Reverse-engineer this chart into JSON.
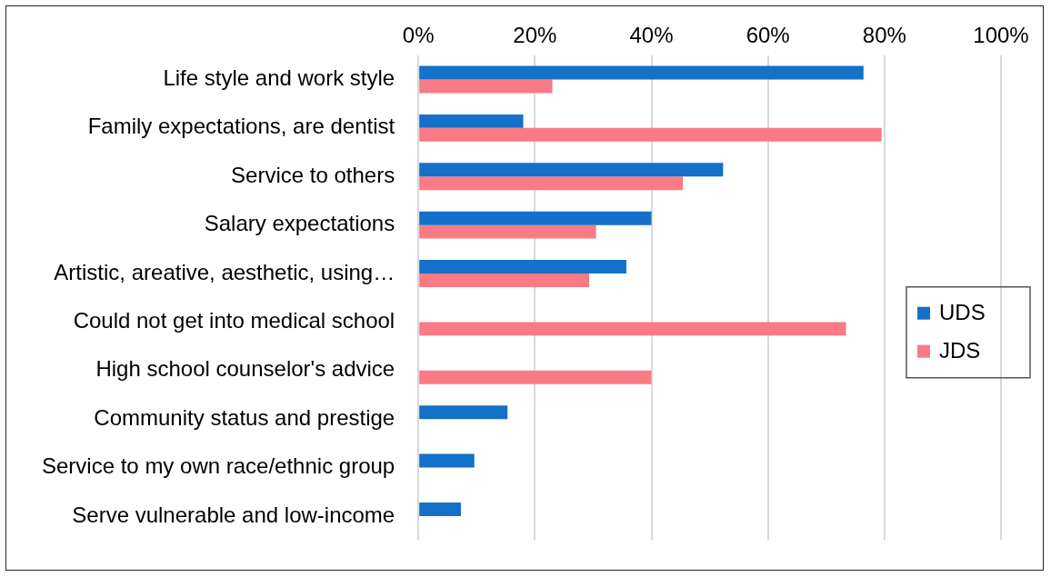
{
  "chart_data": {
    "type": "bar",
    "orientation": "horizontal",
    "categories": [
      "Life style and work style",
      "Family expectations, are dentist",
      "Service to others",
      "Salary expectations",
      "Artistic, areative, aesthetic, using…",
      "Could not get into medical school",
      "High school counselor's advice",
      "Community status and prestige",
      "Service to my own race/ethnic group",
      "Serve vulnerable and low-income"
    ],
    "series": [
      {
        "name": "UDS",
        "color": "#1470c8",
        "values": [
          76.4,
          18,
          52.3,
          40,
          35.7,
          null,
          null,
          15.3,
          9.6,
          7.3
        ]
      },
      {
        "name": "JDS",
        "color": "#fa7a85",
        "values": [
          23,
          79.5,
          45.4,
          30.5,
          29.3,
          73.4,
          40,
          null,
          null,
          null
        ]
      }
    ],
    "xlim": [
      0,
      100
    ],
    "xticks": [
      {
        "value": 0,
        "label": "0%"
      },
      {
        "value": 20,
        "label": "20%"
      },
      {
        "value": 40,
        "label": "40%"
      },
      {
        "value": 60,
        "label": "60%"
      },
      {
        "value": 80,
        "label": "80%"
      },
      {
        "value": 100,
        "label": "100%"
      }
    ],
    "grid": "x",
    "legend": "right"
  }
}
